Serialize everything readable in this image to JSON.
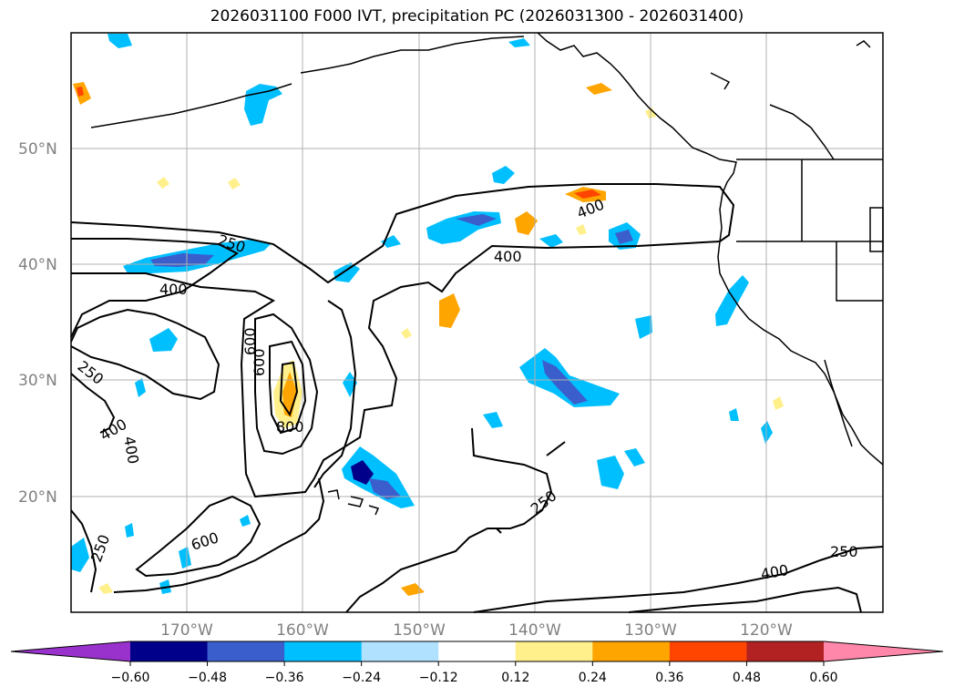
{
  "title": "2026031100 F000 IVT, precipitation PC (2026031300 - 2026031400)",
  "map": {
    "lat_labels": [
      "50°N",
      "40°N",
      "30°N",
      "20°N"
    ],
    "lon_labels": [
      "170°W",
      "160°W",
      "150°W",
      "140°W",
      "130°W",
      "120°W"
    ],
    "extent": {
      "lon_min": -180,
      "lon_max": -110,
      "lat_min": 10,
      "lat_max": 60
    },
    "contour_labels": [
      "250",
      "400",
      "600",
      "800",
      "400",
      "250",
      "400",
      "400",
      "600",
      "400",
      "250",
      "600",
      "250",
      "250",
      "400"
    ]
  },
  "colorbar": {
    "ticks": [
      "−0.60",
      "−0.48",
      "−0.36",
      "−0.24",
      "−0.12",
      "0.12",
      "0.24",
      "0.36",
      "0.48",
      "0.60"
    ],
    "colors": [
      "#9932cc",
      "#00008b",
      "#3a5fcd",
      "#00bfff",
      "#b0e2ff",
      "#ffffff",
      "#fff08c",
      "#ffa500",
      "#ff4500",
      "#b22222",
      "#ff88aa"
    ]
  },
  "colors": {
    "coast": "#000000",
    "grid": "#b0b0b0",
    "contour": "#000000"
  }
}
